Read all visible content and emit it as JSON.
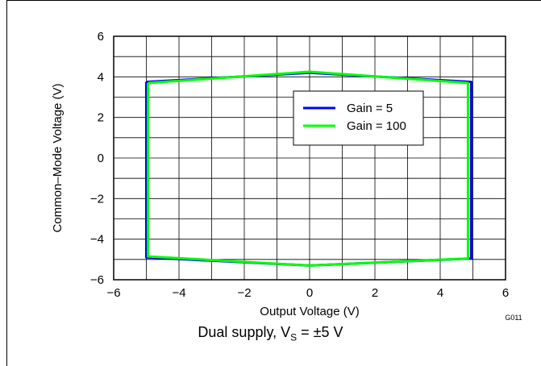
{
  "figure_code": "G011",
  "caption": {
    "prefix": "Dual supply, V",
    "subscript": "S",
    "suffix": " = ±5 V"
  },
  "chart_data": {
    "type": "line",
    "xlabel": "Output Voltage (V)",
    "ylabel": "Common–Mode Voltage (V)",
    "xlim": [
      -6,
      6
    ],
    "ylim": [
      -6,
      6
    ],
    "x_ticks": [
      -6,
      -4,
      -2,
      0,
      2,
      4,
      6
    ],
    "y_ticks": [
      -6,
      -4,
      -2,
      0,
      2,
      4,
      6
    ],
    "x_tick_labels": [
      "−6",
      "−4",
      "−2",
      "0",
      "2",
      "4",
      "6"
    ],
    "y_tick_labels": [
      "−6",
      "−4",
      "−2",
      "0",
      "2",
      "4",
      "6"
    ],
    "minor_grid_step": 1,
    "grid": true,
    "legend_position": "center-right",
    "series": [
      {
        "name": "Gain = 5",
        "color": "#0000ff",
        "points": [
          [
            -5.0,
            3.75
          ],
          [
            0.0,
            4.2
          ],
          [
            4.95,
            3.75
          ],
          [
            4.95,
            -4.95
          ],
          [
            0.0,
            -5.3
          ],
          [
            -5.0,
            -4.9
          ],
          [
            -5.0,
            3.75
          ]
        ]
      },
      {
        "name": "Gain = 100",
        "color": "#00ff00",
        "points": [
          [
            -4.95,
            3.7
          ],
          [
            0.0,
            4.25
          ],
          [
            4.85,
            3.7
          ],
          [
            4.85,
            -4.95
          ],
          [
            0.0,
            -5.3
          ],
          [
            -4.95,
            -4.85
          ],
          [
            -4.95,
            3.7
          ]
        ]
      }
    ]
  }
}
